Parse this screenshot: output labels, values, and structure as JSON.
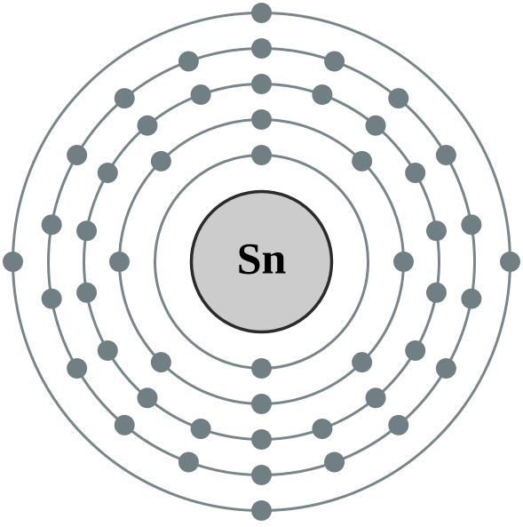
{
  "nucleus": {
    "symbol": "Sn"
  },
  "shells": [
    {
      "electrons": 2
    },
    {
      "electrons": 8
    },
    {
      "electrons": 18
    },
    {
      "electrons": 18
    },
    {
      "electrons": 4
    }
  ],
  "colors": {
    "shell": "#78868a",
    "electron": "#6f7f84",
    "nucleus_fill": "#cccccc",
    "nucleus_stroke": "#2b2b2b",
    "symbol": "#000000"
  }
}
